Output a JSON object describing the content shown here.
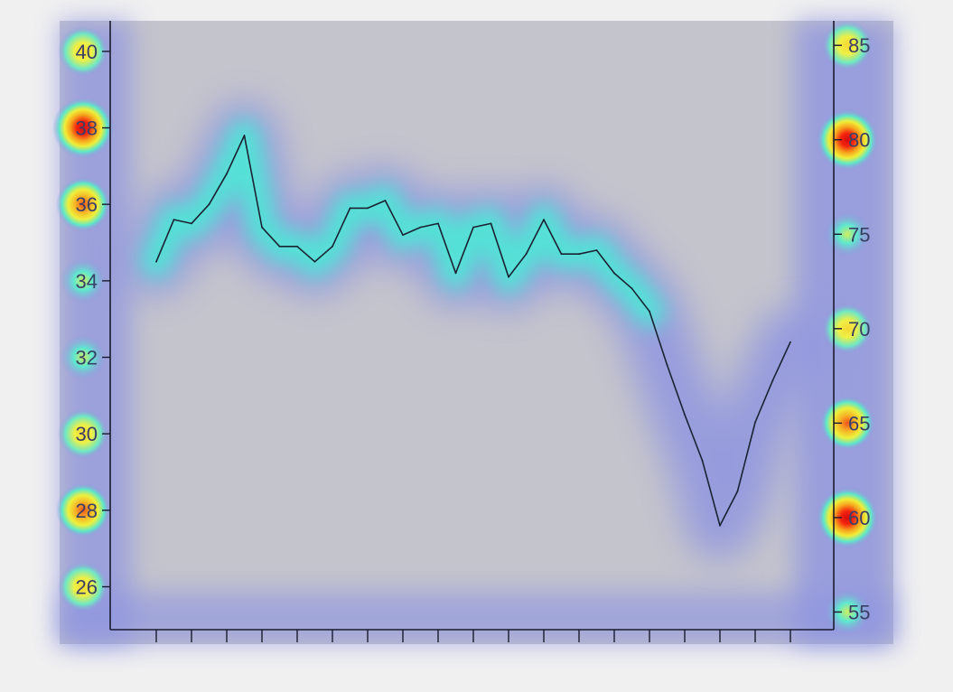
{
  "colors": {
    "page_background": "#f0f0f0",
    "plot_background": "#c4c4cc",
    "axis": "#1a1a2e",
    "line": "#1a2233",
    "tick_label": "#3a3f66",
    "heatmap_low": "#8f95e0",
    "heatmap_mid": "#4de8d6",
    "heatmap_high_yellow": "#f4ec3a",
    "heatmap_peak_red": "#e8140f"
  },
  "chart_data": {
    "type": "line",
    "title": "",
    "xlabel": "",
    "ylabel": "",
    "y2label": "",
    "grid": false,
    "legend": "none",
    "overlay": "saliency heatmap over the plot",
    "x_ticks_count": 19,
    "x_ticks_labelled": false,
    "y_left": {
      "ylim": [
        24.5,
        40.8
      ],
      "ticks": [
        26,
        28,
        30,
        32,
        34,
        36,
        38,
        40
      ],
      "tick_labels": [
        "26",
        "28",
        "30",
        "32",
        "34",
        "36",
        "38",
        "40"
      ]
    },
    "y_right": {
      "ylim": [
        53.3,
        86.3
      ],
      "ticks": [
        55,
        60,
        65,
        70,
        75,
        80,
        85
      ],
      "tick_labels": [
        "55",
        "60",
        "65",
        "70",
        "75",
        "80",
        "85"
      ]
    },
    "series": [
      {
        "axis": "left",
        "x": [
          0,
          0.5,
          1,
          1.5,
          2,
          2.5,
          3,
          3.5,
          4,
          4.5,
          5,
          5.5,
          6,
          6.5,
          7,
          7.5,
          8,
          8.5,
          9,
          9.5,
          10,
          10.5,
          11,
          11.5,
          12,
          12.5,
          13,
          13.5,
          14,
          14.5,
          15,
          15.5,
          16,
          16.5,
          17,
          17.5,
          18
        ],
        "values": [
          34.5,
          35.6,
          35.5,
          36.0,
          36.8,
          37.8,
          35.4,
          34.9,
          34.9,
          34.5,
          34.9,
          35.9,
          35.9,
          36.1,
          35.2,
          35.4,
          35.5,
          34.2,
          35.4,
          35.5,
          34.1,
          34.7,
          35.6,
          34.7,
          34.7,
          34.8,
          34.2,
          33.8,
          33.2,
          31.8,
          30.5,
          29.3,
          27.6,
          28.5,
          30.3,
          31.4,
          32.4
        ]
      }
    ],
    "heatmap_hotspots": [
      {
        "near": "left tick 40",
        "intensity": "yellow"
      },
      {
        "near": "left tick 38",
        "intensity": "red"
      },
      {
        "near": "left tick 36",
        "intensity": "orange"
      },
      {
        "near": "left tick 34",
        "intensity": "cyan"
      },
      {
        "near": "left tick 32",
        "intensity": "cyan"
      },
      {
        "near": "left tick 30",
        "intensity": "yellow"
      },
      {
        "near": "left tick 28",
        "intensity": "orange"
      },
      {
        "near": "left tick 26",
        "intensity": "yellow"
      },
      {
        "near": "right tick 85",
        "intensity": "yellow"
      },
      {
        "near": "right tick 80",
        "intensity": "red"
      },
      {
        "near": "right tick 75",
        "intensity": "cyan"
      },
      {
        "near": "right tick 70",
        "intensity": "yellow"
      },
      {
        "near": "right tick 65",
        "intensity": "orange"
      },
      {
        "near": "right tick 60",
        "intensity": "red"
      },
      {
        "near": "right tick 55",
        "intensity": "cyan"
      }
    ]
  }
}
